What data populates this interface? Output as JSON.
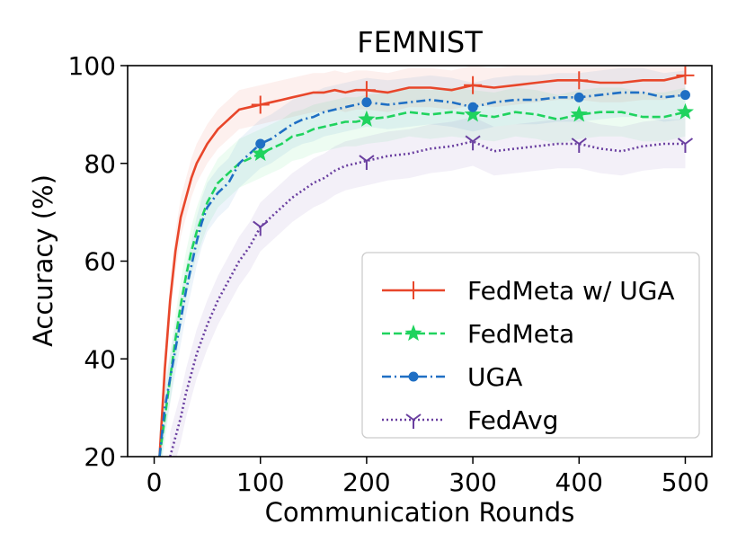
{
  "chart_data": {
    "type": "line",
    "title": "FEMNIST",
    "xlabel": "Communication Rounds",
    "ylabel": "Accuracy (%)",
    "xlim": [
      -25,
      525
    ],
    "ylim": [
      20,
      100
    ],
    "xticks": [
      0,
      100,
      200,
      300,
      400,
      500
    ],
    "yticks": [
      20,
      40,
      60,
      80,
      100
    ],
    "grid": false,
    "legend": {
      "placement": "lower-right"
    },
    "markers_every": 100,
    "series": [
      {
        "name": "FedMeta w/ UGA",
        "color": "#e8462a",
        "line_style": "solid",
        "marker": "plus",
        "band": 4,
        "x": [
          5,
          10,
          15,
          20,
          25,
          30,
          35,
          40,
          45,
          50,
          60,
          70,
          80,
          90,
          100,
          110,
          120,
          130,
          140,
          150,
          160,
          170,
          180,
          190,
          200,
          220,
          240,
          260,
          280,
          300,
          320,
          340,
          360,
          380,
          400,
          420,
          440,
          460,
          480,
          500
        ],
        "values": [
          20,
          38,
          52,
          62,
          69,
          73,
          77,
          80,
          82,
          84,
          87,
          89,
          91,
          91.5,
          92,
          92.5,
          93,
          93.5,
          94,
          94.5,
          94.5,
          95,
          94.5,
          95,
          95,
          94.5,
          95.5,
          95.5,
          95,
          96,
          95.5,
          96,
          96.5,
          97,
          97,
          96.5,
          96.5,
          97,
          97,
          98
        ]
      },
      {
        "name": "FedMeta",
        "color": "#1fd35e",
        "line_style": "dashed",
        "marker": "star",
        "band": 5,
        "x": [
          5,
          10,
          15,
          20,
          25,
          30,
          35,
          40,
          45,
          50,
          60,
          70,
          80,
          90,
          100,
          110,
          120,
          130,
          140,
          150,
          160,
          170,
          180,
          190,
          200,
          220,
          240,
          260,
          280,
          300,
          320,
          340,
          360,
          380,
          400,
          420,
          440,
          460,
          480,
          500
        ],
        "values": [
          20,
          28,
          36,
          44,
          51,
          57,
          62,
          66,
          69,
          72,
          76,
          78,
          80,
          81,
          82,
          83,
          84,
          85.5,
          86,
          87,
          87.5,
          88,
          88.5,
          88.5,
          89,
          89.5,
          90.5,
          90,
          90.5,
          90,
          89.5,
          90.5,
          90,
          89,
          90,
          90.5,
          90.5,
          89.5,
          89.5,
          90.5
        ]
      },
      {
        "name": "UGA",
        "color": "#1f6fc4",
        "line_style": "dashdot",
        "marker": "circle",
        "band": 5,
        "x": [
          5,
          10,
          15,
          20,
          25,
          30,
          35,
          40,
          45,
          50,
          60,
          70,
          80,
          90,
          100,
          110,
          120,
          130,
          140,
          150,
          160,
          170,
          180,
          190,
          200,
          220,
          240,
          260,
          280,
          300,
          320,
          340,
          360,
          380,
          400,
          420,
          440,
          460,
          480,
          500
        ],
        "values": [
          20,
          30,
          36,
          42,
          48,
          54,
          59,
          64,
          68,
          71,
          74,
          76,
          80,
          82,
          84,
          85,
          86.5,
          88,
          89,
          89.5,
          90.5,
          91,
          91.5,
          92,
          92.5,
          92,
          92.5,
          93,
          92.5,
          91.5,
          92.5,
          93,
          93,
          93.5,
          93.5,
          94,
          94.5,
          94.5,
          93.5,
          94
        ]
      },
      {
        "name": "FedAvg",
        "color": "#6a3fa0",
        "line_style": "dotted",
        "marker": "tri_down",
        "band": 5,
        "x": [
          15,
          20,
          25,
          30,
          35,
          40,
          45,
          50,
          60,
          70,
          80,
          90,
          100,
          110,
          120,
          130,
          140,
          150,
          160,
          170,
          180,
          190,
          200,
          220,
          240,
          260,
          280,
          300,
          320,
          340,
          360,
          380,
          400,
          420,
          440,
          460,
          480,
          500
        ],
        "values": [
          20,
          24,
          28,
          33,
          37,
          41,
          44,
          47,
          52,
          56,
          60,
          63,
          67,
          69,
          71,
          73,
          74.5,
          76,
          77,
          78.5,
          79.5,
          80,
          80.5,
          81.5,
          82,
          83,
          83.5,
          84.5,
          82.5,
          83,
          83.5,
          84,
          84,
          83,
          82.5,
          83.5,
          84,
          84
        ]
      }
    ]
  }
}
